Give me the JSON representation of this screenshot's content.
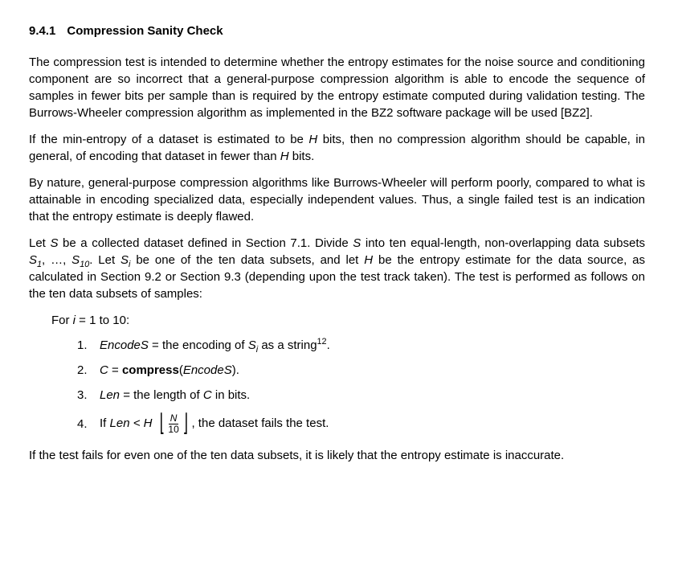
{
  "heading": {
    "number": "9.4.1",
    "title": "Compression Sanity Check"
  },
  "p1": "The compression test is intended to determine whether the entropy estimates for the noise source and conditioning component are so incorrect that a general-purpose compression algorithm is able to encode the sequence of samples in fewer bits per sample than is required by the entropy estimate computed during validation testing.  The Burrows-Wheeler compression algorithm as implemented in the BZ2 software package will be used [BZ2].",
  "p2_a": "If the min-entropy of a dataset is estimated to be ",
  "p2_H": "H",
  "p2_b": " bits, then no compression algorithm should be capable, in general, of encoding that dataset in fewer than ",
  "p2_H2": "H",
  "p2_c": " bits.",
  "p3": "By nature, general-purpose compression algorithms like Burrows-Wheeler will perform poorly, compared to what is attainable in encoding specialized data, especially independent values.  Thus, a single failed test is an indication that the entropy estimate is deeply flawed.",
  "p4_a": "Let ",
  "p4_S": "S",
  "p4_b": " be a collected dataset defined in Section 7.1.  Divide ",
  "p4_S2": "S",
  "p4_c": " into ten equal-length, non-overlapping data subsets ",
  "p4_S1": "S",
  "p4_sub1": "1",
  "p4_d": ", …, ",
  "p4_S10": "S",
  "p4_sub10": "10",
  "p4_e": ". Let ",
  "p4_Si": "S",
  "p4_subi": "i",
  "p4_f": " be one of the ten data subsets, and let ",
  "p4_H": "H",
  "p4_g": " be the entropy estimate for the data source, as calculated in Section 9.2 or Section 9.3 (depending upon the test track taken). The test is performed as follows on the ten data subsets of samples:",
  "for_a": "For ",
  "for_i": "i",
  "for_b": " = 1 to 10:",
  "li1_num": "1.",
  "li1_a": "EncodeS",
  "li1_b": " = the encoding of ",
  "li1_Si": "S",
  "li1_subi": "i",
  "li1_c": " as a string",
  "li1_sup": "12",
  "li1_d": ".",
  "li2_num": "2.",
  "li2_a": "C",
  "li2_b": " = ",
  "li2_comp": "compress",
  "li2_c": "(",
  "li2_enc": "EncodeS",
  "li2_d": ").",
  "li3_num": "3.",
  "li3_a": "Len",
  "li3_b": " = the length of ",
  "li3_C": "C",
  "li3_c": " in bits.",
  "li4_num": "4.",
  "li4_a": "If ",
  "li4_Len": "Len",
  "li4_lt": " < ",
  "li4_H": "H",
  "li4_fracN": "N",
  "li4_frac10": "10",
  "li4_b": ", the dataset fails the test.",
  "p5": "If the test fails for even one of the ten data subsets, it is likely that the entropy estimate is inaccurate."
}
